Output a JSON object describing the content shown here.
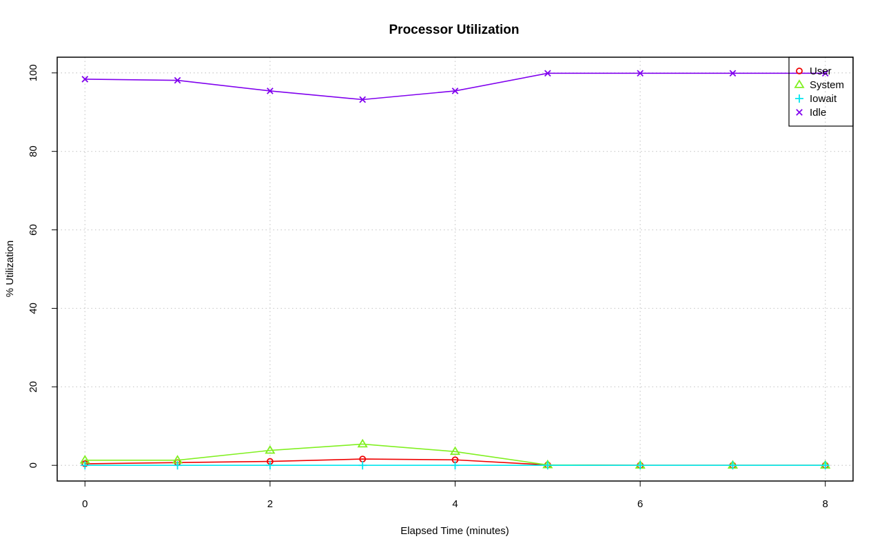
{
  "chart_data": {
    "type": "line",
    "title": "Processor Utilization",
    "xlabel": "Elapsed Time (minutes)",
    "ylabel": "% Utilization",
    "xlim": [
      -0.3,
      8.3
    ],
    "ylim": [
      -4,
      104
    ],
    "x_ticks": [
      0,
      2,
      4,
      6,
      8
    ],
    "y_ticks": [
      0,
      20,
      40,
      60,
      80,
      100
    ],
    "grid": true,
    "legend_position": "top-right",
    "x": [
      0,
      1,
      2,
      3,
      4,
      5,
      6,
      7,
      8
    ],
    "series": [
      {
        "name": "User",
        "color": "#ee0000",
        "marker": "circle",
        "values": [
          0.4,
          0.7,
          1.0,
          1.6,
          1.4,
          0.1,
          0.0,
          0.0,
          0.0
        ]
      },
      {
        "name": "System",
        "color": "#80f020",
        "marker": "triangle",
        "values": [
          1.3,
          1.3,
          3.8,
          5.4,
          3.5,
          0.1,
          0.0,
          0.0,
          0.0
        ]
      },
      {
        "name": "Iowait",
        "color": "#00e5ee",
        "marker": "plus",
        "values": [
          0.0,
          0.0,
          0.0,
          0.0,
          0.0,
          0.0,
          0.0,
          0.0,
          0.0
        ]
      },
      {
        "name": "Idle",
        "color": "#8000ee",
        "marker": "cross",
        "values": [
          98.4,
          98.1,
          95.4,
          93.2,
          95.4,
          99.9,
          99.9,
          99.9,
          99.9
        ]
      }
    ]
  }
}
